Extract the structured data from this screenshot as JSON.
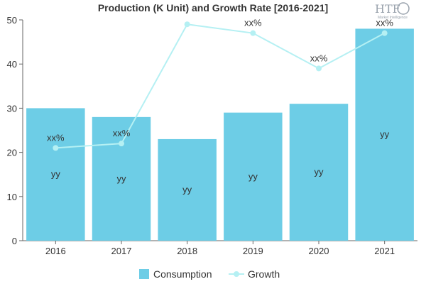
{
  "chart_data": {
    "type": "bar",
    "title": "Production (K Unit) and Growth Rate [2016-2021]",
    "categories": [
      "2016",
      "2017",
      "2018",
      "2019",
      "2020",
      "2021"
    ],
    "ylim": [
      0,
      50
    ],
    "yticks": [
      0,
      10,
      20,
      30,
      40,
      50
    ],
    "series": [
      {
        "name": "Consumption",
        "type": "bar",
        "color": "#6dcde6",
        "values": [
          30,
          28,
          23,
          29,
          31,
          48
        ],
        "labels": [
          "yy",
          "yy",
          "yy",
          "yy",
          "yy",
          "yy"
        ]
      },
      {
        "name": "Growth",
        "type": "line",
        "color": "#b5f0f3",
        "values": [
          21,
          22,
          49,
          47,
          39,
          47
        ],
        "labels": [
          "xx%",
          "xx%",
          "",
          "xx%",
          "xx%",
          "xx%"
        ]
      }
    ],
    "legend": {
      "position": "bottom"
    },
    "grid": false
  },
  "logo": {
    "text": "HTF",
    "subtitle": "Market Intelligence"
  }
}
